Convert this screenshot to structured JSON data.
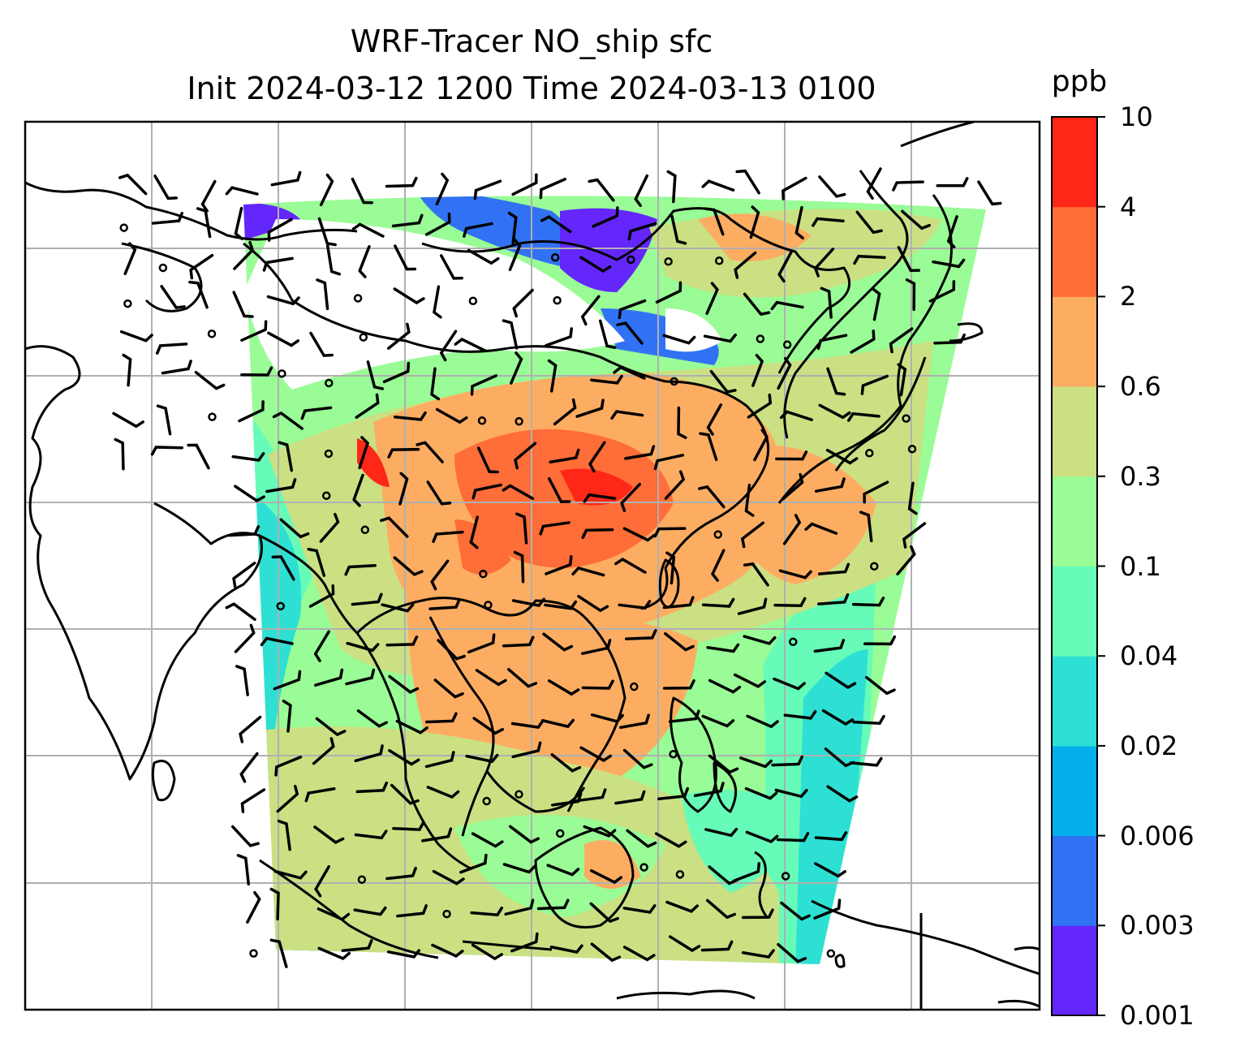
{
  "title": {
    "line1": "WRF-Tracer NO_ship sfc",
    "line2": "Init 2024-03-12 1200 Time 2024-03-13 0100"
  },
  "colorbar": {
    "unit": "ppb",
    "levels": [
      "0.001",
      "0.003",
      "0.006",
      "0.02",
      "0.04",
      "0.1",
      "0.3",
      "0.6",
      "2",
      "4",
      "10"
    ],
    "colors": [
      "#6427fb",
      "#3172f4",
      "#04afea",
      "#2ee0d3",
      "#66fbb8",
      "#99fc96",
      "#cbe083",
      "#fdad62",
      "#ff6d38",
      "#ff2717"
    ]
  },
  "map": {
    "background": "#ffffff",
    "gridline_color": "#b0b0b0",
    "coastline_color": "#000000",
    "wind_barb_color": "#000000"
  }
}
